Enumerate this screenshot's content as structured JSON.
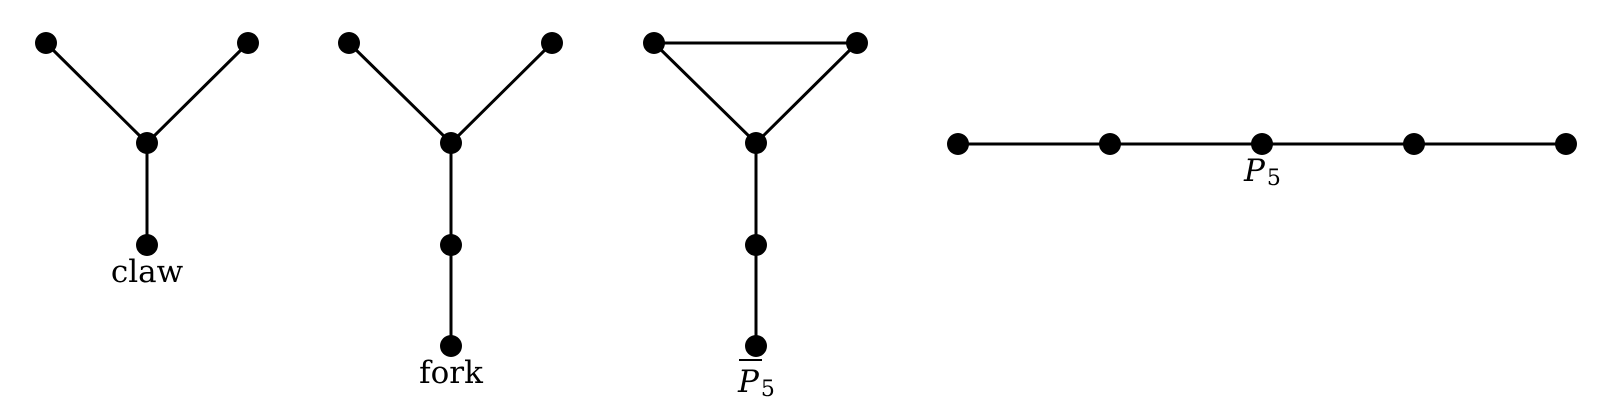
{
  "graphs": [
    {
      "id": "claw",
      "label": "claw",
      "label_style": "plain"
    },
    {
      "id": "fork",
      "label": "fork",
      "label_style": "plain"
    },
    {
      "id": "p5-complement",
      "label_base": "P",
      "label_sub": "5",
      "label_style": "overline"
    },
    {
      "id": "p5",
      "label_base": "P",
      "label_sub": "5",
      "label_style": "italic"
    }
  ],
  "colors": {
    "ink": "#000000",
    "background": "#ffffff"
  }
}
